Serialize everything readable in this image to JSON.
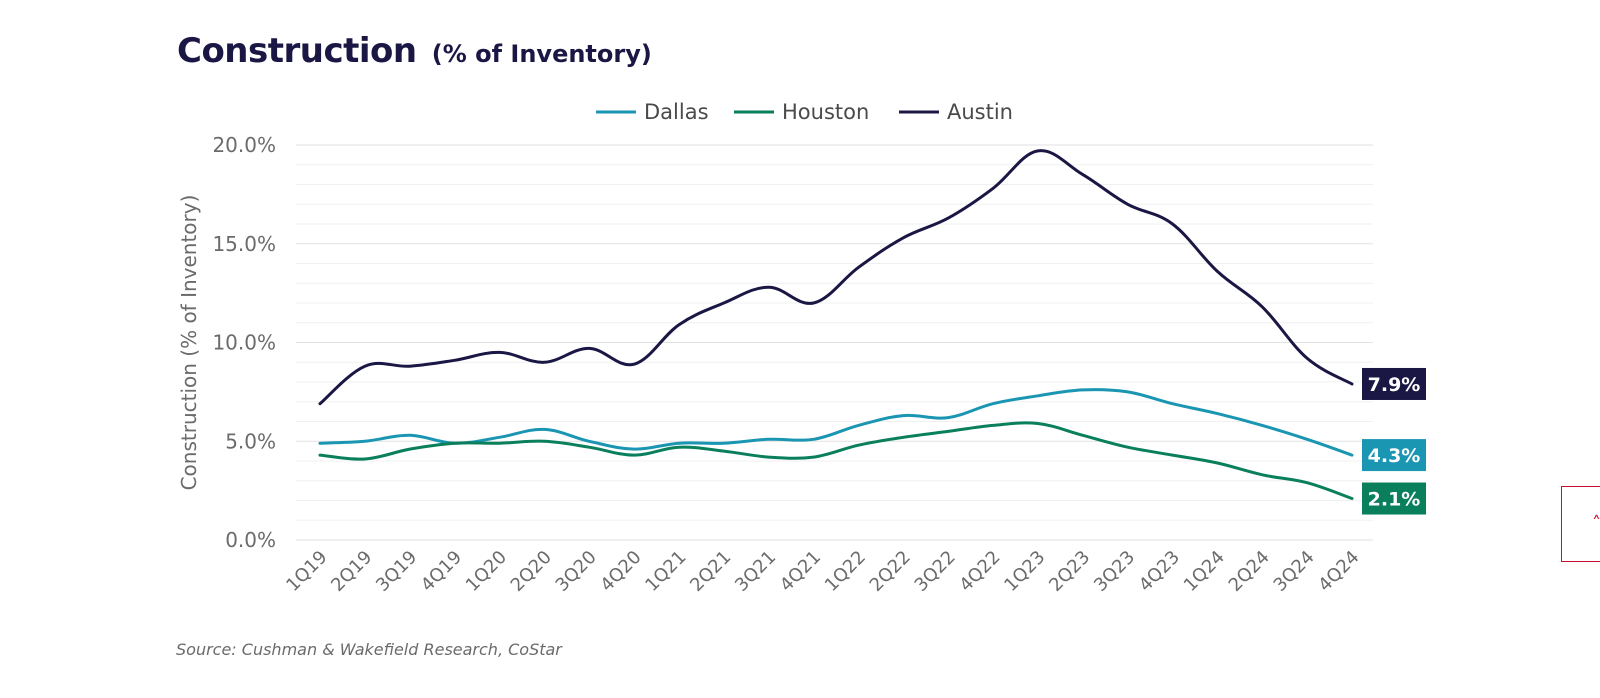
{
  "title": {
    "main": "Construction",
    "sub": "(% of Inventory)"
  },
  "chart_data": {
    "type": "line",
    "title": "Construction (% of Inventory)",
    "xlabel": "",
    "ylabel": "Construction (% of Inventory)",
    "ylim": [
      0,
      20
    ],
    "yticks": [
      "0.0%",
      "5.0%",
      "10.0%",
      "15.0%",
      "20.0%"
    ],
    "grid": true,
    "legend_position": "top-center",
    "categories": [
      "1Q19",
      "2Q19",
      "3Q19",
      "4Q19",
      "1Q20",
      "2Q20",
      "3Q20",
      "4Q20",
      "1Q21",
      "2Q21",
      "3Q21",
      "4Q21",
      "1Q22",
      "2Q22",
      "3Q22",
      "4Q22",
      "1Q23",
      "2Q23",
      "3Q23",
      "4Q23",
      "1Q24",
      "2Q24",
      "3Q24",
      "4Q24"
    ],
    "series": [
      {
        "name": "Dallas",
        "color": "#1a96b3",
        "end_label": "4.3%",
        "values": [
          4.9,
          5.0,
          5.3,
          4.9,
          5.2,
          5.6,
          5.0,
          4.6,
          4.9,
          4.9,
          5.1,
          5.1,
          5.8,
          6.3,
          6.2,
          6.9,
          7.3,
          7.6,
          7.5,
          6.9,
          6.4,
          5.8,
          5.1,
          4.3
        ]
      },
      {
        "name": "Houston",
        "color": "#0a7f5b",
        "end_label": "2.1%",
        "values": [
          4.3,
          4.1,
          4.6,
          4.9,
          4.9,
          5.0,
          4.7,
          4.3,
          4.7,
          4.5,
          4.2,
          4.2,
          4.8,
          5.2,
          5.5,
          5.8,
          5.9,
          5.3,
          4.7,
          4.3,
          3.9,
          3.3,
          2.9,
          2.1
        ]
      },
      {
        "name": "Austin",
        "color": "#1a1744",
        "end_label": "7.9%",
        "values": [
          6.9,
          8.8,
          8.8,
          9.1,
          9.5,
          9.0,
          9.7,
          8.9,
          10.9,
          12.0,
          12.8,
          12.0,
          13.8,
          15.3,
          16.3,
          17.8,
          19.7,
          18.5,
          17.0,
          16.0,
          13.6,
          11.8,
          9.2,
          7.9
        ]
      }
    ]
  },
  "source": "Source: Cushman & Wakefield Research, CoStar",
  "scroll_top": {
    "icon": "chevron-up-icon",
    "glyph": "˄"
  }
}
